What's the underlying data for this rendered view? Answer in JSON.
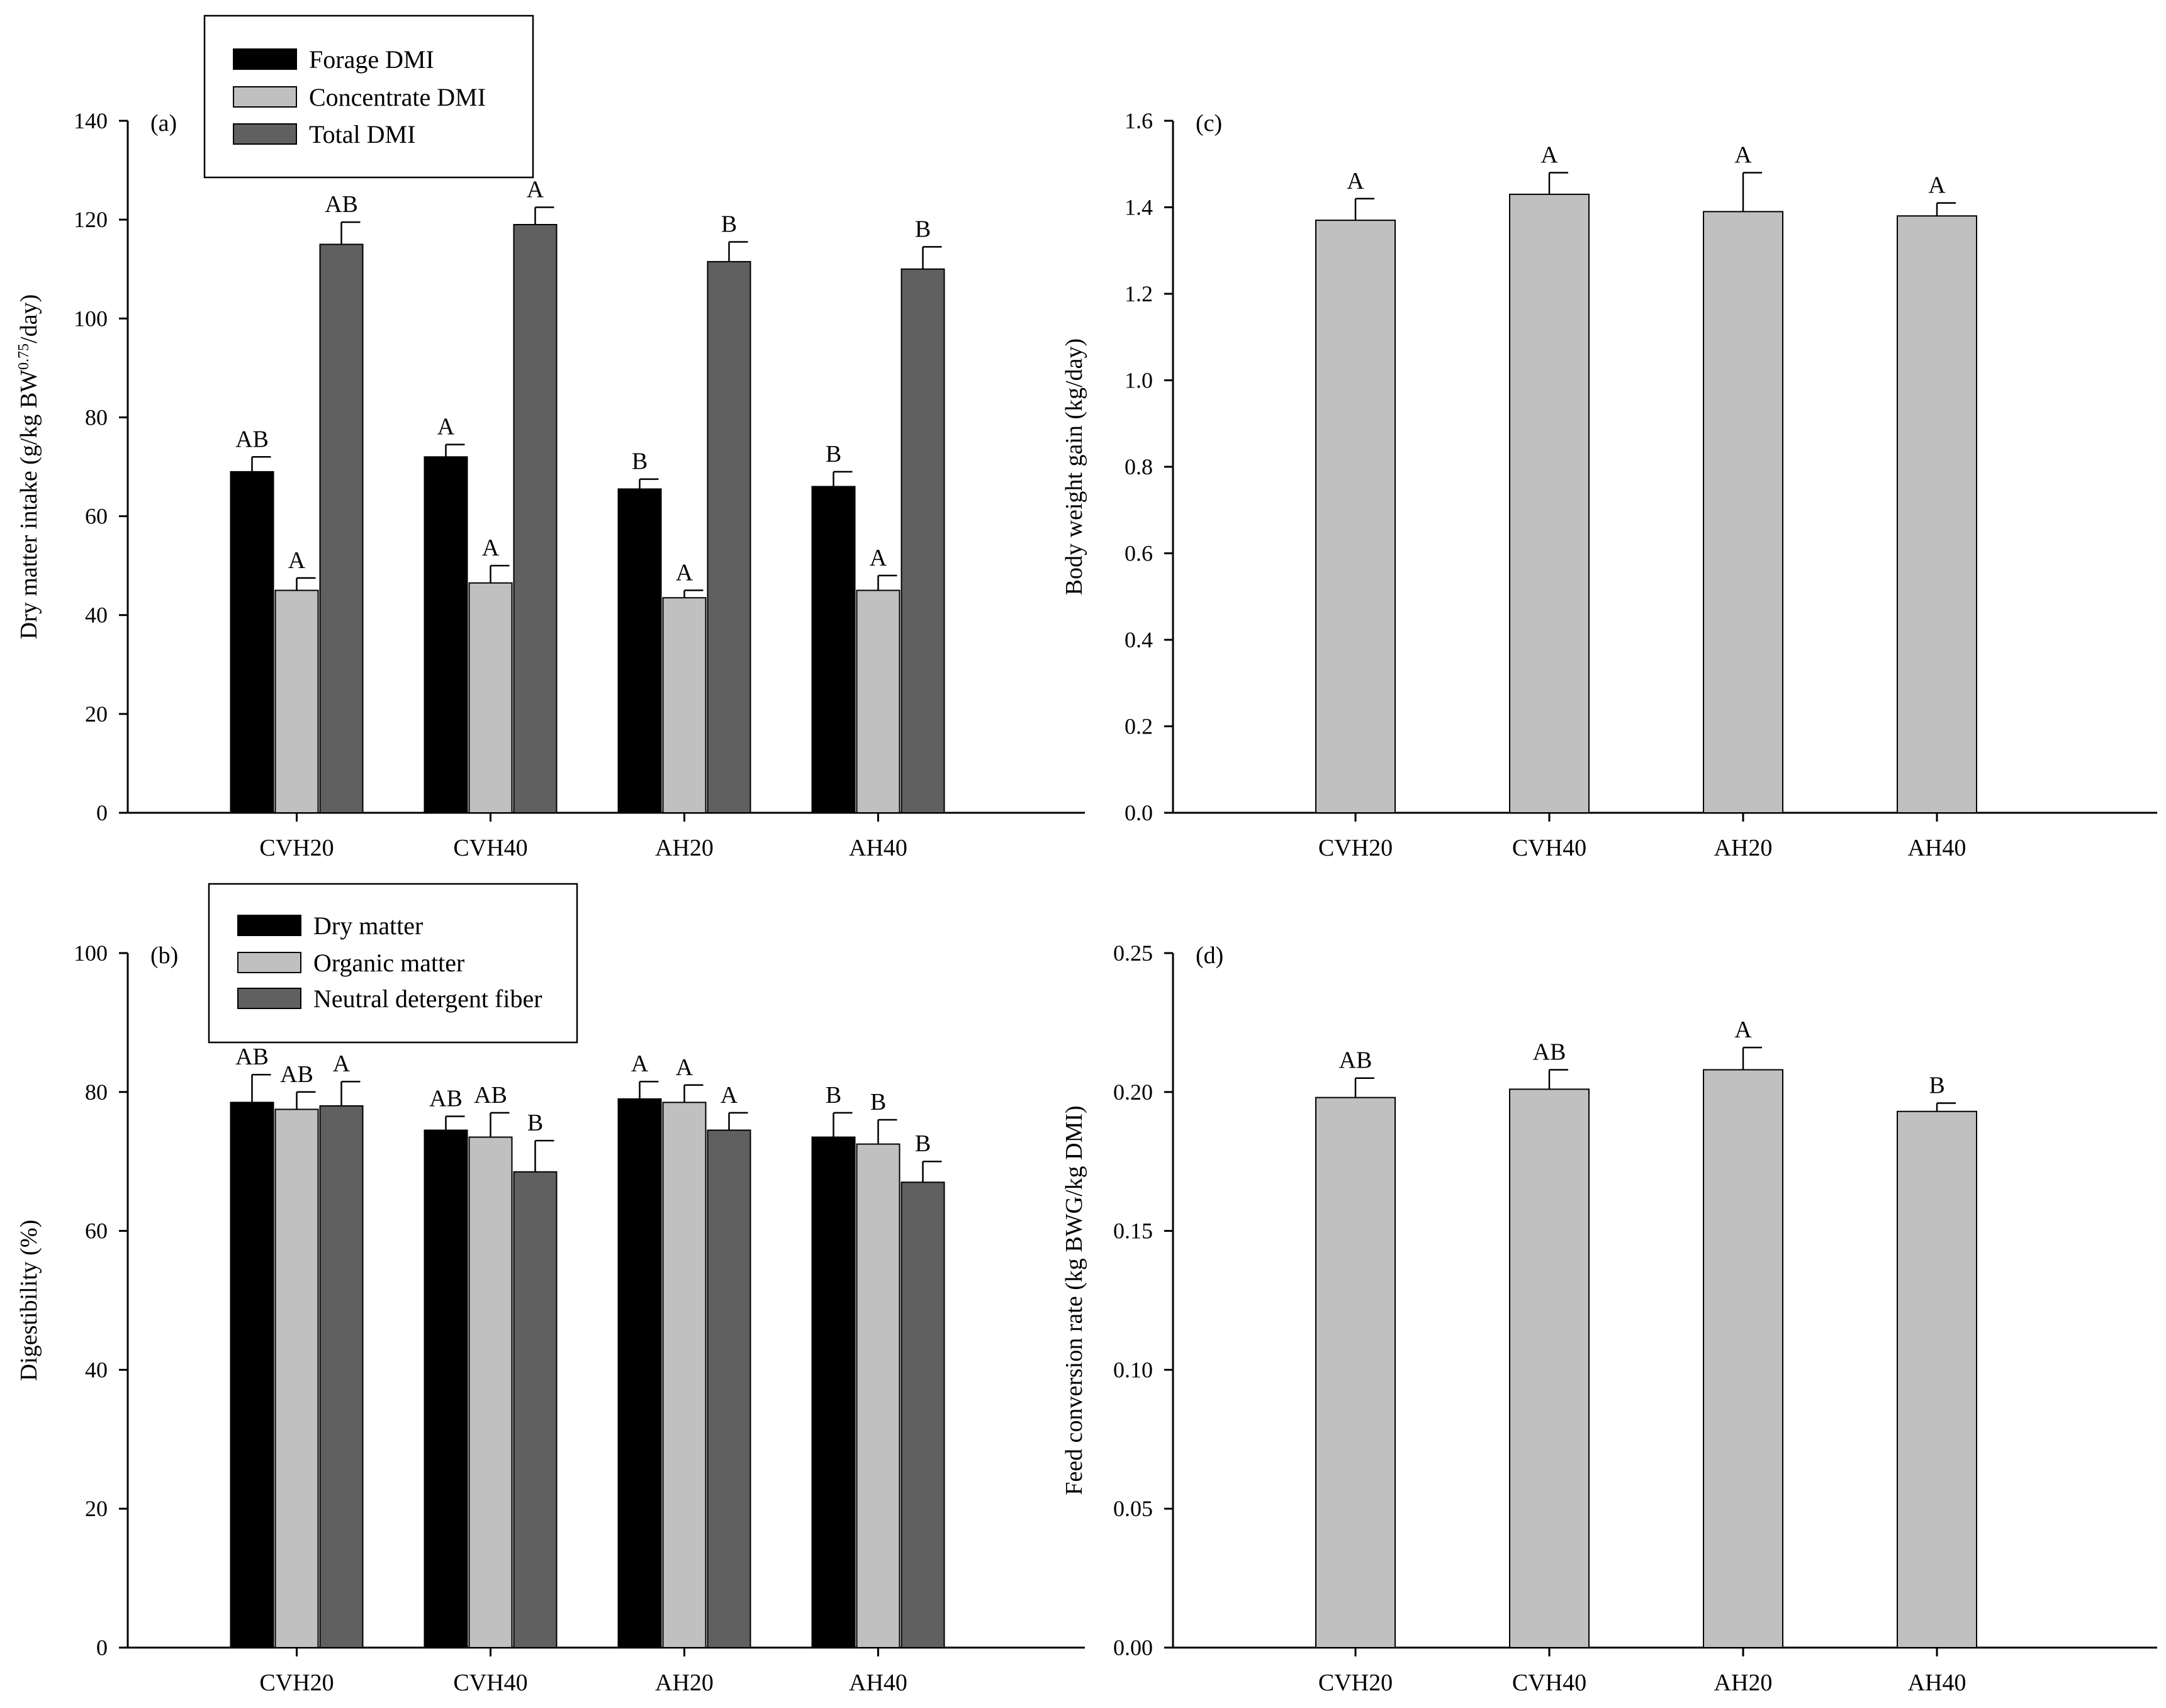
{
  "chart_data": [
    {
      "id": "a",
      "type": "bar",
      "panel_label": "(a)",
      "ylabel_main": "Dry matter intake (g/kg BW",
      "ylabel_sup": "0.75",
      "ylabel_tail": "/day)",
      "ylim": [
        0,
        140
      ],
      "yticks": [
        0,
        20,
        40,
        60,
        80,
        100,
        120,
        140
      ],
      "tick_decimals": 0,
      "categories": [
        "CVH20",
        "CVH40",
        "AH20",
        "AH40"
      ],
      "series": [
        {
          "name": "Forage DMI",
          "color": "#000000",
          "values": [
            69,
            72,
            65.5,
            66
          ],
          "errors": [
            3,
            2.5,
            2,
            3
          ],
          "letters": [
            "AB",
            "A",
            "B",
            "B"
          ]
        },
        {
          "name": "Concentrate DMI",
          "color": "#c0c0c0",
          "values": [
            45,
            46.5,
            43.5,
            45
          ],
          "errors": [
            2.5,
            3.5,
            1.5,
            3
          ],
          "letters": [
            "A",
            "A",
            "A",
            "A"
          ]
        },
        {
          "name": "Total DMI",
          "color": "#606060",
          "values": [
            115,
            119,
            111.5,
            110
          ],
          "errors": [
            4.5,
            3.5,
            4,
            4.5
          ],
          "letters": [
            "AB",
            "A",
            "B",
            "B"
          ]
        }
      ]
    },
    {
      "id": "b",
      "type": "bar",
      "panel_label": "(b)",
      "ylabel_main": "Digestibility (%)",
      "ylabel_sup": "",
      "ylabel_tail": "",
      "ylim": [
        0,
        100
      ],
      "yticks": [
        0,
        20,
        40,
        60,
        80,
        100
      ],
      "tick_decimals": 0,
      "categories": [
        "CVH20",
        "CVH40",
        "AH20",
        "AH40"
      ],
      "series": [
        {
          "name": "Dry matter",
          "color": "#000000",
          "values": [
            78.5,
            74.5,
            79,
            73.5
          ],
          "errors": [
            4,
            2,
            2.5,
            3.5
          ],
          "letters": [
            "AB",
            "AB",
            "A",
            "B"
          ]
        },
        {
          "name": "Organic matter",
          "color": "#c0c0c0",
          "values": [
            77.5,
            73.5,
            78.5,
            72.5
          ],
          "errors": [
            2.5,
            3.5,
            2.5,
            3.5
          ],
          "letters": [
            "AB",
            "AB",
            "A",
            "B"
          ]
        },
        {
          "name": "Neutral detergent fiber",
          "color": "#606060",
          "values": [
            78,
            68.5,
            74.5,
            67
          ],
          "errors": [
            3.5,
            4.5,
            2.5,
            3
          ],
          "letters": [
            "A",
            "B",
            "A",
            "B"
          ]
        }
      ]
    },
    {
      "id": "c",
      "type": "bar",
      "panel_label": "(c)",
      "ylabel_main": "Body weight gain (kg/day)",
      "ylabel_sup": "",
      "ylabel_tail": "",
      "ylim": [
        0,
        1.6
      ],
      "yticks": [
        0,
        0.2,
        0.4,
        0.6,
        0.8,
        1.0,
        1.2,
        1.4,
        1.6
      ],
      "tick_decimals": 1,
      "categories": [
        "CVH20",
        "CVH40",
        "AH20",
        "AH40"
      ],
      "series": [
        {
          "name": "Body weight gain",
          "color": "#c0c0c0",
          "values": [
            1.37,
            1.43,
            1.39,
            1.38
          ],
          "errors": [
            0.05,
            0.05,
            0.09,
            0.03
          ],
          "letters": [
            "A",
            "A",
            "A",
            "A"
          ]
        }
      ]
    },
    {
      "id": "d",
      "type": "bar",
      "panel_label": "(d)",
      "ylabel_main": "Feed conversion rate (kg BWG/kg DMI)",
      "ylabel_sup": "",
      "ylabel_tail": "",
      "ylim": [
        0,
        0.25
      ],
      "yticks": [
        0,
        0.05,
        0.1,
        0.15,
        0.2,
        0.25
      ],
      "tick_decimals": 2,
      "categories": [
        "CVH20",
        "CVH40",
        "AH20",
        "AH40"
      ],
      "series": [
        {
          "name": "Feed conversion rate",
          "color": "#c0c0c0",
          "values": [
            0.198,
            0.201,
            0.208,
            0.193
          ],
          "errors": [
            0.007,
            0.007,
            0.008,
            0.003
          ],
          "letters": [
            "AB",
            "AB",
            "A",
            "B"
          ]
        }
      ]
    }
  ]
}
